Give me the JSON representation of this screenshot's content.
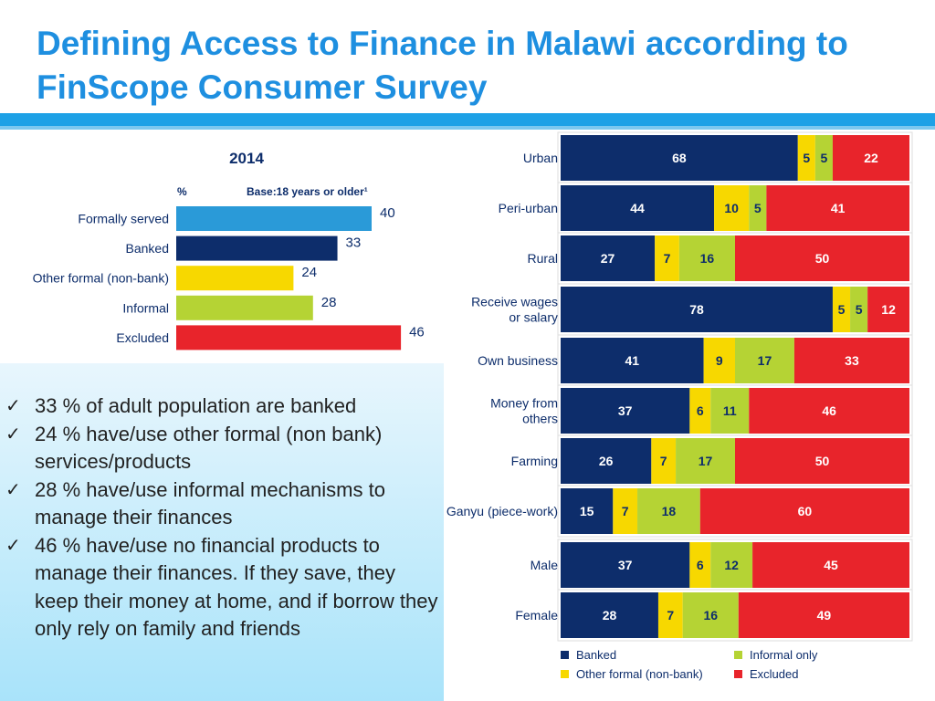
{
  "slide": {
    "title": "Defining Access to Finance in Malawi according to FinScope Consumer Survey"
  },
  "chart_data": [
    {
      "type": "bar",
      "orientation": "horizontal",
      "title": "2014",
      "unit_label": "%",
      "base_label": "Base:18 years or older¹",
      "categories": [
        "Formally served",
        "Banked",
        "Other formal (non-bank)",
        "Informal",
        "Excluded"
      ],
      "values": [
        40,
        33,
        24,
        28,
        46
      ],
      "colors": [
        "#2a9ad8",
        "#0d2d6b",
        "#f7d800",
        "#b5d334",
        "#e8242b"
      ]
    },
    {
      "type": "bar",
      "orientation": "horizontal",
      "stacked": true,
      "categories": [
        "Urban",
        "Peri-urban",
        "Rural",
        "Receive wages or salary",
        "Own business",
        "Money from others",
        "Farming",
        "Ganyu (piece-work)",
        "Male",
        "Female"
      ],
      "series": [
        {
          "name": "Banked",
          "color": "#0d2d6b",
          "values": [
            68,
            44,
            27,
            78,
            41,
            37,
            26,
            15,
            37,
            28
          ]
        },
        {
          "name": "Other formal (non-bank)",
          "color": "#f7d800",
          "values": [
            5,
            10,
            7,
            5,
            9,
            6,
            7,
            7,
            6,
            7
          ]
        },
        {
          "name": "Informal only",
          "color": "#b5d334",
          "values": [
            5,
            5,
            16,
            5,
            17,
            11,
            17,
            18,
            12,
            16
          ]
        },
        {
          "name": "Excluded",
          "color": "#e8242b",
          "values": [
            22,
            41,
            50,
            12,
            33,
            46,
            50,
            60,
            45,
            49
          ]
        }
      ],
      "legend_order": [
        "Banked",
        "Informal only",
        "Other formal (non-bank)",
        "Excluded"
      ]
    }
  ],
  "notes": {
    "check_glyph": "✓",
    "items": [
      "33 % of adult population are banked",
      "24 % have/use other formal (non bank) services/products",
      "28 % have/use informal mechanisms to manage their finances",
      "46 % have/use no financial products to manage their finances.  If they save, they keep their money at home, and if borrow they only rely on family and friends"
    ]
  }
}
